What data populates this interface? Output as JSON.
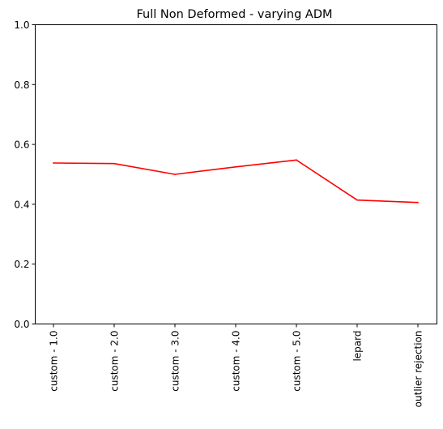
{
  "chart_data": {
    "type": "line",
    "title": "Full Non Deformed - varying ADM",
    "xlabel": "",
    "ylabel": "",
    "categories": [
      "custom - 1.0",
      "custom - 2.0",
      "custom - 3.0",
      "custom - 4.0",
      "custom - 5.0",
      "lepard",
      "outlier rejection"
    ],
    "series": [
      {
        "color": "#ff0000",
        "values": [
          0.538,
          0.536,
          0.5,
          0.525,
          0.548,
          0.414,
          0.406
        ]
      }
    ],
    "ylim": [
      0.0,
      1.0
    ],
    "yticks": [
      0.0,
      0.2,
      0.4,
      0.6,
      0.8,
      1.0
    ],
    "ytick_labels": [
      "0.0",
      "0.2",
      "0.4",
      "0.6",
      "0.8",
      "1.0"
    ],
    "grid": false,
    "legend": "none"
  }
}
